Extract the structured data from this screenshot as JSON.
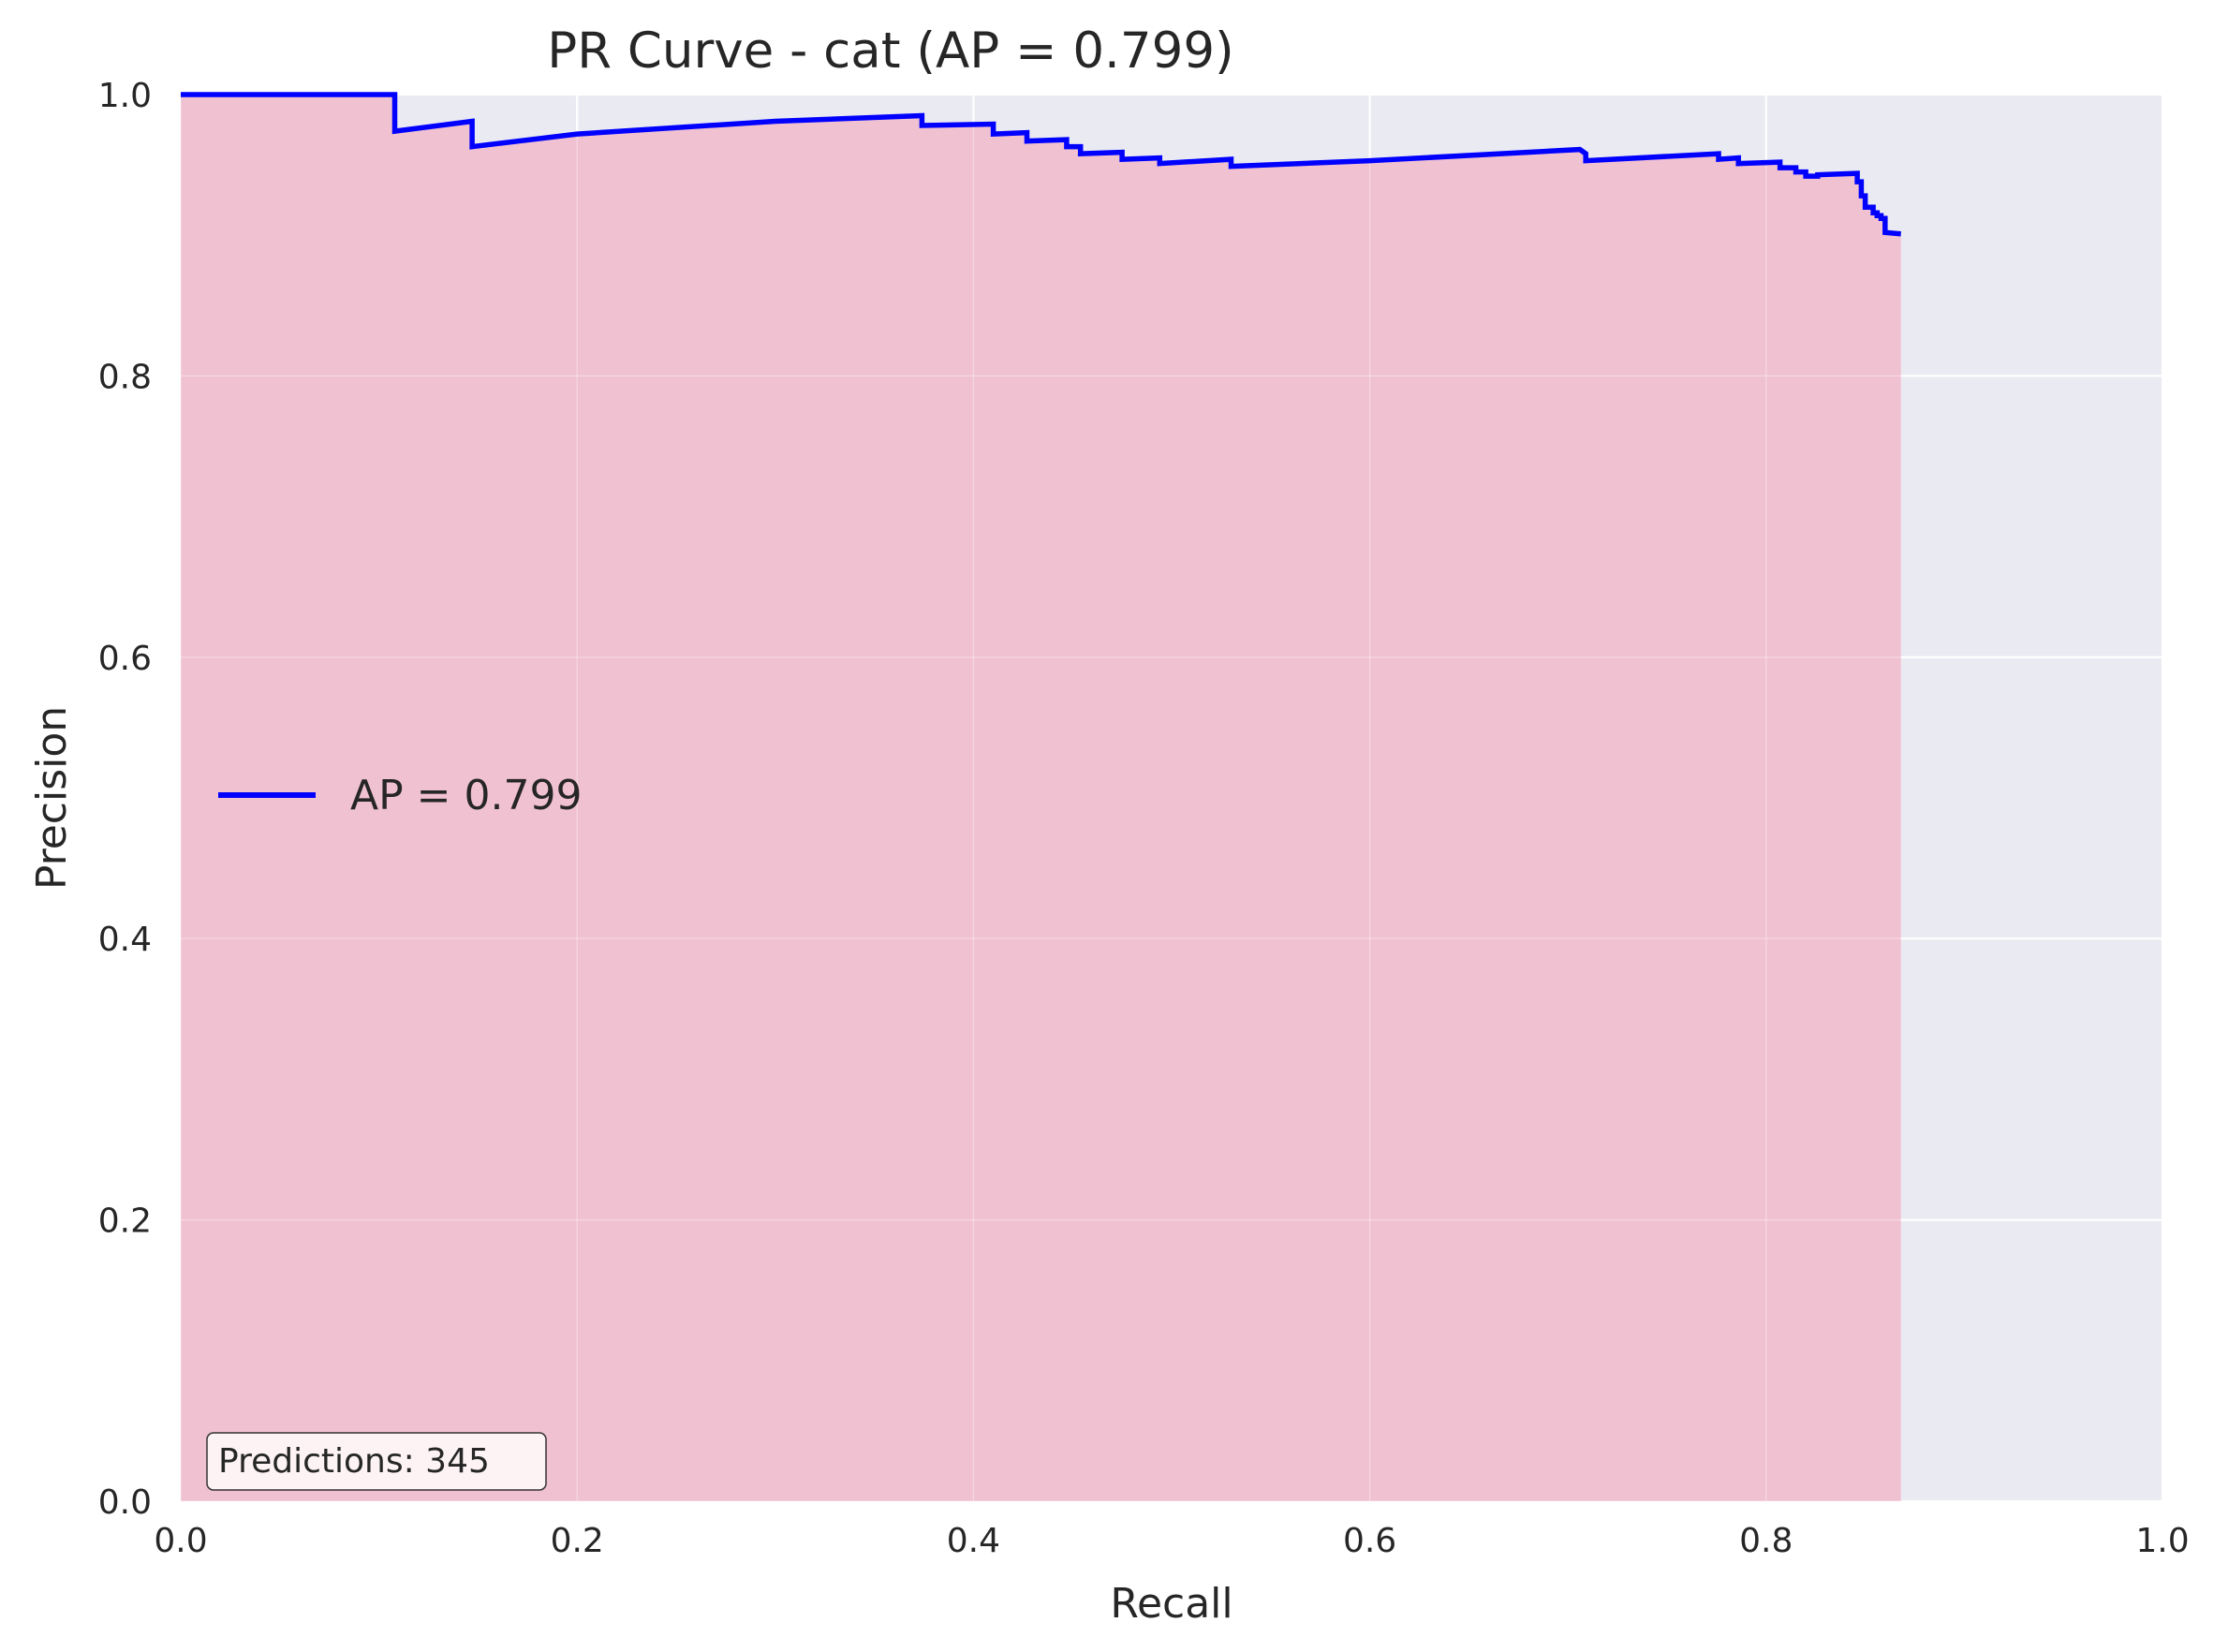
{
  "chart_data": {
    "type": "area",
    "title": "PR Curve - cat (AP = 0.799)",
    "xlabel": "Recall",
    "ylabel": "Precision",
    "xlim": [
      0.0,
      1.0
    ],
    "ylim": [
      0.0,
      1.0
    ],
    "x_ticks": [
      "0.0",
      "0.2",
      "0.4",
      "0.6",
      "0.8",
      "1.0"
    ],
    "y_ticks": [
      "0.0",
      "0.2",
      "0.4",
      "0.6",
      "0.8",
      "1.0"
    ],
    "grid": true,
    "legend_position": "center-left",
    "annotation": "Predictions: 345",
    "colors": {
      "line": "#0000ff",
      "fill": "#f0bfcf",
      "plot_background": "#eaeaf2",
      "grid": "#ffffff"
    },
    "series": [
      {
        "name": "AP = 0.799",
        "x": [
          0.0,
          0.108,
          0.108,
          0.147,
          0.147,
          0.2,
          0.3,
          0.374,
          0.374,
          0.41,
          0.41,
          0.427,
          0.427,
          0.447,
          0.447,
          0.454,
          0.454,
          0.475,
          0.475,
          0.494,
          0.494,
          0.53,
          0.53,
          0.6,
          0.706,
          0.709,
          0.709,
          0.776,
          0.776,
          0.786,
          0.786,
          0.807,
          0.807,
          0.815,
          0.815,
          0.82,
          0.82,
          0.826,
          0.826,
          0.846,
          0.846,
          0.848,
          0.848,
          0.85,
          0.85,
          0.854,
          0.854,
          0.856,
          0.856,
          0.858,
          0.858,
          0.86,
          0.86,
          0.868
        ],
        "y": [
          1.0,
          1.0,
          0.974,
          0.981,
          0.963,
          0.972,
          0.981,
          0.985,
          0.978,
          0.979,
          0.972,
          0.973,
          0.967,
          0.968,
          0.963,
          0.963,
          0.958,
          0.959,
          0.954,
          0.955,
          0.951,
          0.954,
          0.949,
          0.953,
          0.961,
          0.958,
          0.953,
          0.958,
          0.954,
          0.955,
          0.951,
          0.952,
          0.948,
          0.948,
          0.945,
          0.945,
          0.942,
          0.942,
          0.943,
          0.944,
          0.938,
          0.938,
          0.928,
          0.928,
          0.92,
          0.92,
          0.916,
          0.916,
          0.914,
          0.914,
          0.912,
          0.912,
          0.902,
          0.901
        ]
      }
    ]
  }
}
